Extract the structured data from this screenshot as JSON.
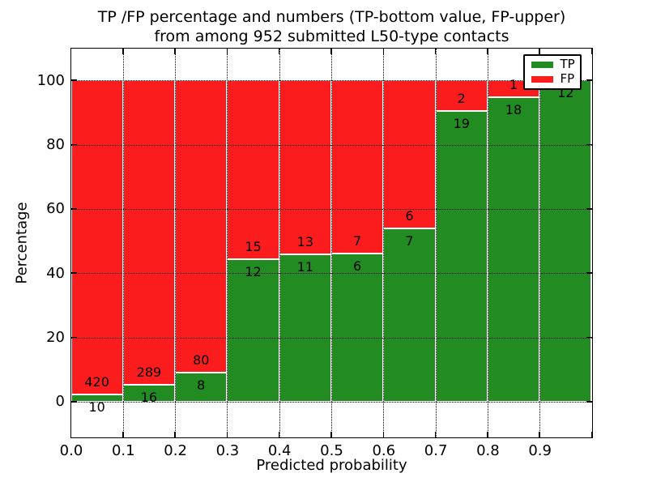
{
  "chart_data": {
    "type": "bar",
    "stacked": true,
    "title_line1": "TP /FP percentage and numbers (TP-bottom value, FP-upper)",
    "title_line2": "from among 952 submitted L50-type contacts",
    "xlabel": "Predicted probability",
    "ylabel": "Percentage",
    "xlim": [
      0,
      1
    ],
    "ylim": [
      -11,
      110
    ],
    "x_tick_values": [
      0,
      0.1,
      0.2,
      0.3,
      0.4,
      0.5,
      0.6,
      0.7,
      0.8,
      0.9,
      1.0
    ],
    "x_tick_labels": [
      "0.0",
      "0.1",
      "0.2",
      "0.3",
      "0.4",
      "0.5",
      "0.6",
      "0.7",
      "0.8",
      "0.9"
    ],
    "y_tick_values": [
      0,
      20,
      40,
      60,
      80,
      100
    ],
    "grid": "dotted, both axes, drawn over bars",
    "colors": {
      "tp": "#228b22",
      "fp": "#fb1d1d",
      "bar_edge": "#ffffff",
      "frame": "#000000"
    },
    "legend": {
      "position": "upper right",
      "entries": [
        {
          "label": "TP",
          "color": "#228b22"
        },
        {
          "label": "FP",
          "color": "#fb1d1d"
        }
      ]
    },
    "bars": [
      {
        "x_start": 0.0,
        "x_end": 0.1,
        "tp_count": 10,
        "fp_count": 420,
        "tp_pct": 2.3
      },
      {
        "x_start": 0.1,
        "x_end": 0.2,
        "tp_count": 16,
        "fp_count": 289,
        "tp_pct": 5.2
      },
      {
        "x_start": 0.2,
        "x_end": 0.3,
        "tp_count": 8,
        "fp_count": 80,
        "tp_pct": 9.1
      },
      {
        "x_start": 0.3,
        "x_end": 0.4,
        "tp_count": 12,
        "fp_count": 15,
        "tp_pct": 44.4
      },
      {
        "x_start": 0.4,
        "x_end": 0.5,
        "tp_count": 11,
        "fp_count": 13,
        "tp_pct": 45.8
      },
      {
        "x_start": 0.5,
        "x_end": 0.6,
        "tp_count": 6,
        "fp_count": 7,
        "tp_pct": 46.2
      },
      {
        "x_start": 0.6,
        "x_end": 0.7,
        "tp_count": 7,
        "fp_count": 6,
        "tp_pct": 53.8
      },
      {
        "x_start": 0.7,
        "x_end": 0.8,
        "tp_count": 19,
        "fp_count": 2,
        "tp_pct": 90.5
      },
      {
        "x_start": 0.8,
        "x_end": 0.9,
        "tp_count": 18,
        "fp_count": 1,
        "tp_pct": 94.7
      },
      {
        "x_start": 0.9,
        "x_end": 1.0,
        "tp_count": 12,
        "fp_count": null,
        "tp_pct": 100
      }
    ]
  }
}
